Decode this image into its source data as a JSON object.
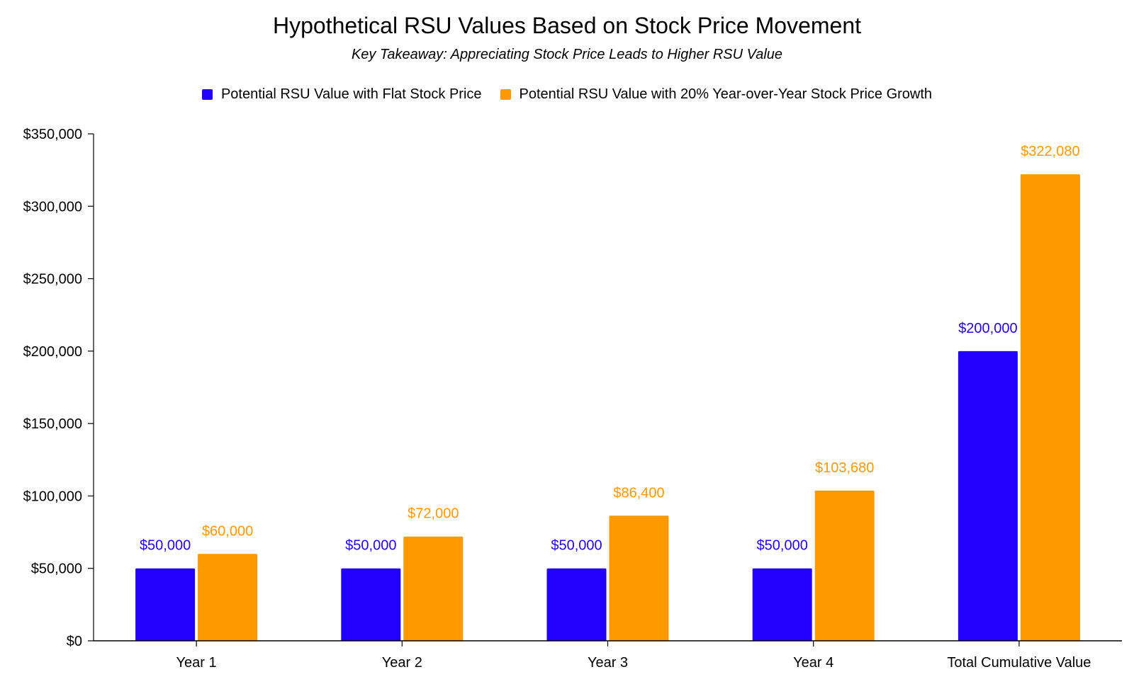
{
  "chart_data": {
    "type": "bar",
    "title": "Hypothetical RSU Values Based on Stock Price Movement",
    "subtitle": "Key Takeaway: Appreciating Stock Price Leads to Higher RSU Value",
    "categories": [
      "Year 1",
      "Year 2",
      "Year 3",
      "Year 4",
      "Total Cumulative Value"
    ],
    "series": [
      {
        "name": "Potential RSU Value with Flat Stock Price",
        "color": "#2200ff",
        "values": [
          50000,
          50000,
          50000,
          50000,
          200000
        ],
        "labels": [
          "$50,000",
          "$50,000",
          "$50,000",
          "$50,000",
          "$200,000"
        ]
      },
      {
        "name": "Potential RSU Value with 20% Year-over-Year Stock Price Growth",
        "color": "#ff9900",
        "values": [
          60000,
          72000,
          86400,
          103680,
          322080
        ],
        "labels": [
          "$60,000",
          "$72,000",
          "$86,400",
          "$103,680",
          "$322,080"
        ]
      }
    ],
    "ylim": [
      0,
      350000
    ],
    "yticks": [
      0,
      50000,
      100000,
      150000,
      200000,
      250000,
      300000,
      350000
    ],
    "ytick_labels": [
      "$0",
      "$50,000",
      "$100,000",
      "$150,000",
      "$200,000",
      "$250,000",
      "$300,000",
      "$350,000"
    ],
    "legend_position": "top",
    "grid": false
  }
}
